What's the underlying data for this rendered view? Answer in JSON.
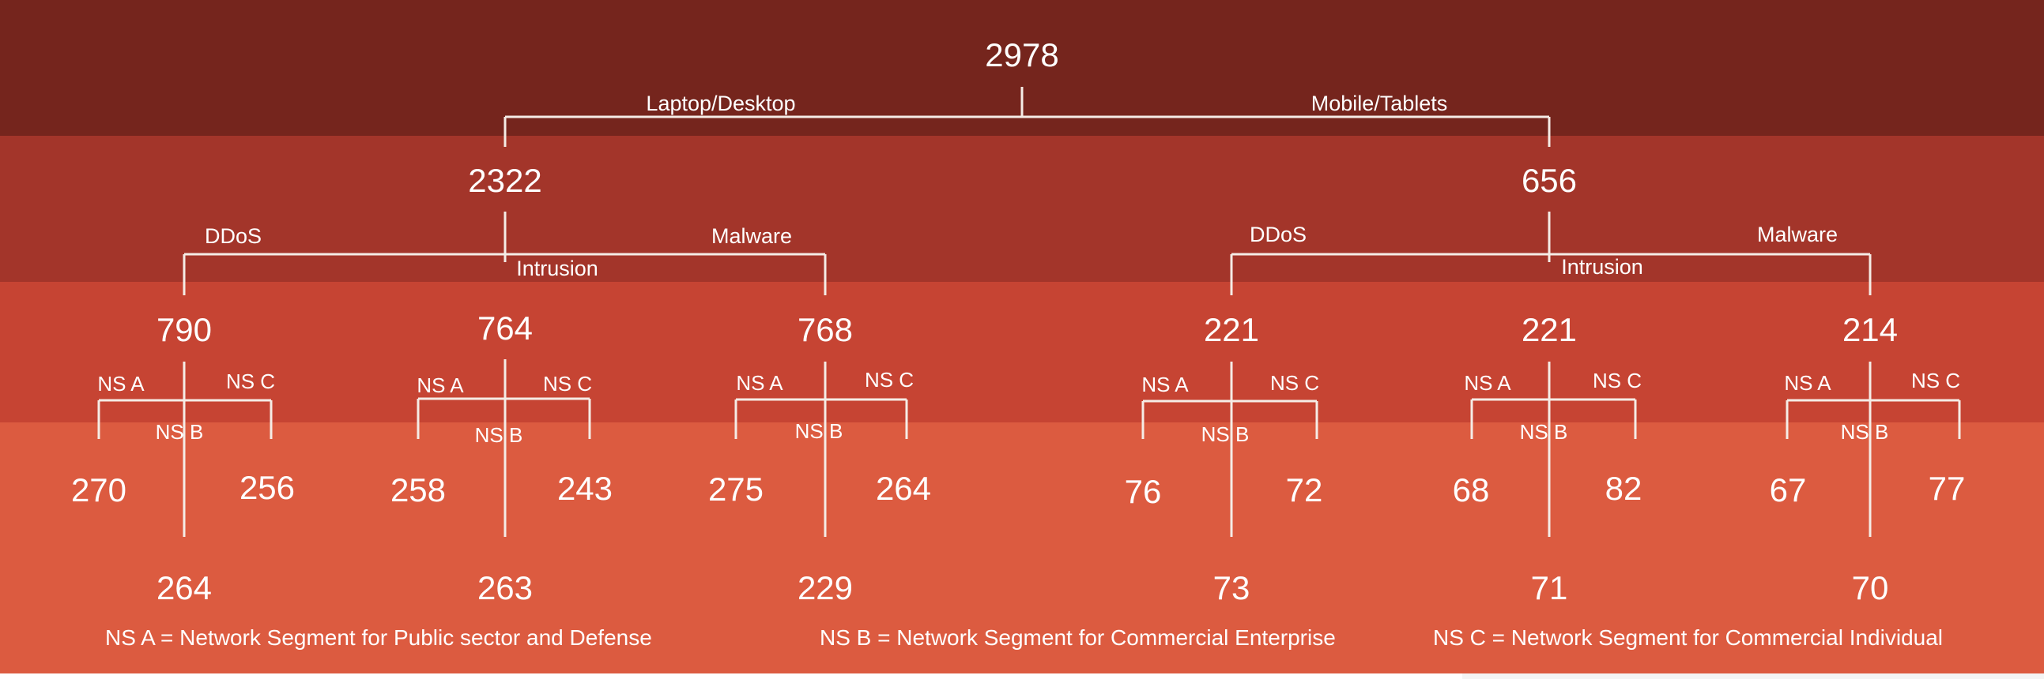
{
  "colors": {
    "band1": "#75251d",
    "band2": "#a3352a",
    "band3": "#c64433",
    "band4": "#dc5b40",
    "line": "#f5ece6",
    "text": "#ffffff"
  },
  "root": {
    "value": "2978",
    "left_branch_label": "Laptop/Desktop",
    "right_branch_label": "Mobile/Tablets"
  },
  "devices": [
    {
      "value": "2322",
      "labels": {
        "ddos": "DDoS",
        "intrusion": "Intrusion",
        "malware": "Malware"
      },
      "attacks": [
        {
          "value": "790",
          "ns_a_label": "NS A",
          "ns_b_label": "NS B",
          "ns_c_label": "NS C",
          "ns_a": "270",
          "ns_c": "256",
          "ns_b": "264"
        },
        {
          "value": "764",
          "ns_a_label": "NS A",
          "ns_b_label": "NS B",
          "ns_c_label": "NS C",
          "ns_a": "258",
          "ns_c": "243",
          "ns_b": "263"
        },
        {
          "value": "768",
          "ns_a_label": "NS A",
          "ns_b_label": "NS B",
          "ns_c_label": "NS C",
          "ns_a": "275",
          "ns_c": "264",
          "ns_b": "229"
        }
      ]
    },
    {
      "value": "656",
      "labels": {
        "ddos": "DDoS",
        "intrusion": "Intrusion",
        "malware": "Malware"
      },
      "attacks": [
        {
          "value": "221",
          "ns_a_label": "NS A",
          "ns_b_label": "NS B",
          "ns_c_label": "NS C",
          "ns_a": "76",
          "ns_c": "72",
          "ns_b": "73"
        },
        {
          "value": "221",
          "ns_a_label": "NS A",
          "ns_b_label": "NS B",
          "ns_c_label": "NS C",
          "ns_a": "68",
          "ns_c": "82",
          "ns_b": "71"
        },
        {
          "value": "214",
          "ns_a_label": "NS A",
          "ns_b_label": "NS B",
          "ns_c_label": "NS C",
          "ns_a": "67",
          "ns_c": "77",
          "ns_b": "70"
        }
      ]
    }
  ],
  "legend": {
    "ns_a": "NS A = Network Segment for Public sector and Defense",
    "ns_b": "NS B = Network Segment for Commercial Enterprise",
    "ns_c": "NS C = Network Segment for Commercial Individual"
  }
}
